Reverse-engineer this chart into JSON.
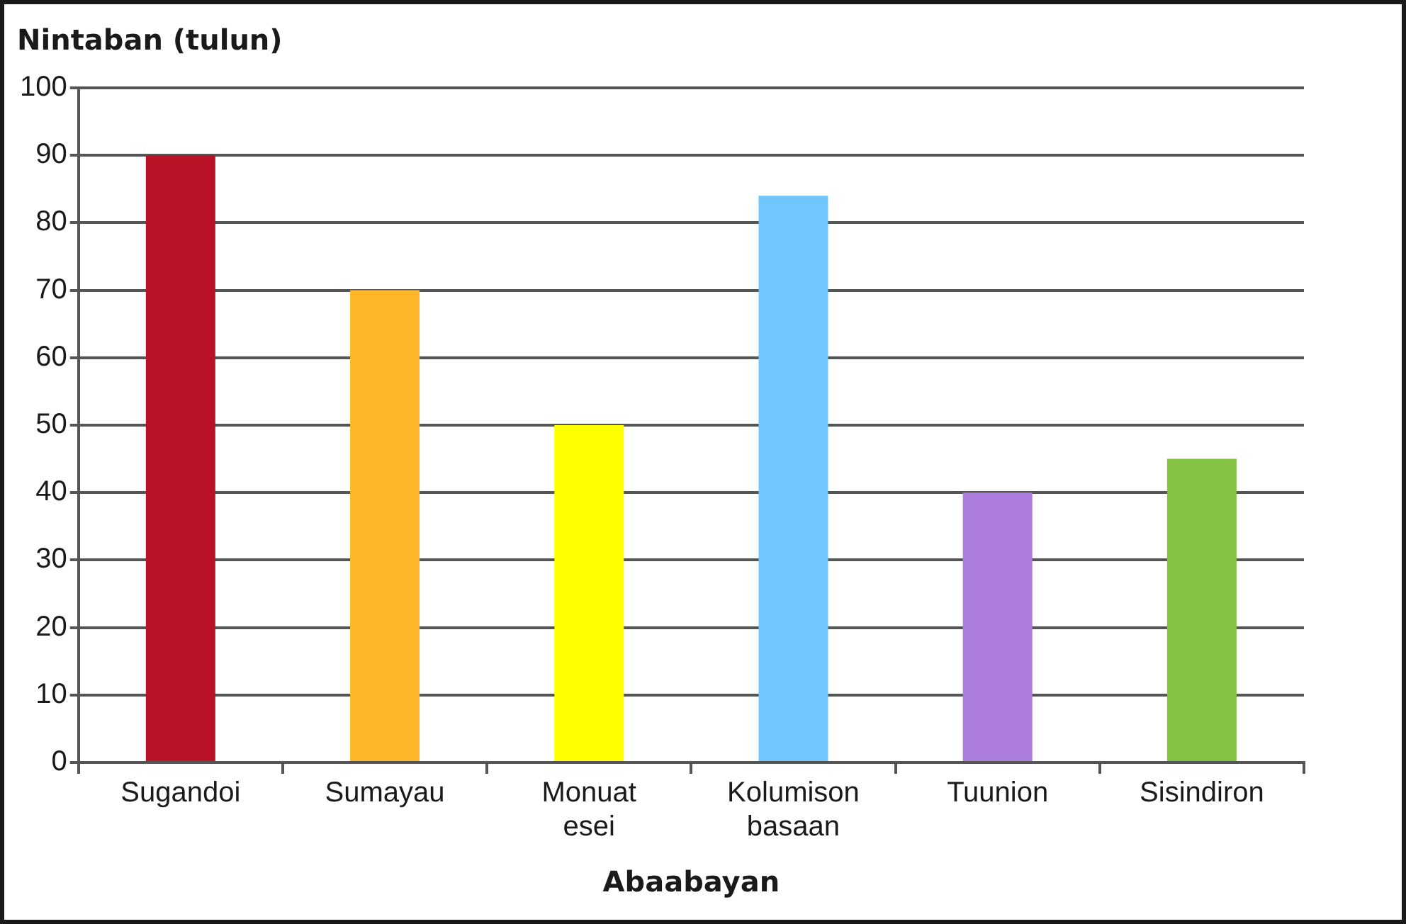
{
  "chart_data": {
    "type": "bar",
    "ylabel": "Nintaban (tulun)",
    "xlabel": "Abaabayan",
    "categories": [
      "Sugandoi",
      "Sumayau",
      "Monuat esei",
      "Kolumison basaan",
      "Tuunion",
      "Sisindiron"
    ],
    "values": [
      90,
      70,
      50,
      84,
      40,
      45
    ],
    "colors": [
      "#b81226",
      "#fdb62a",
      "#ffff00",
      "#72c6fe",
      "#ac7ddf",
      "#83c341"
    ],
    "ylim": [
      0,
      100
    ],
    "yticks": [
      0,
      10,
      20,
      30,
      40,
      50,
      60,
      70,
      80,
      90,
      100
    ],
    "grid": "y",
    "legend": false
  }
}
